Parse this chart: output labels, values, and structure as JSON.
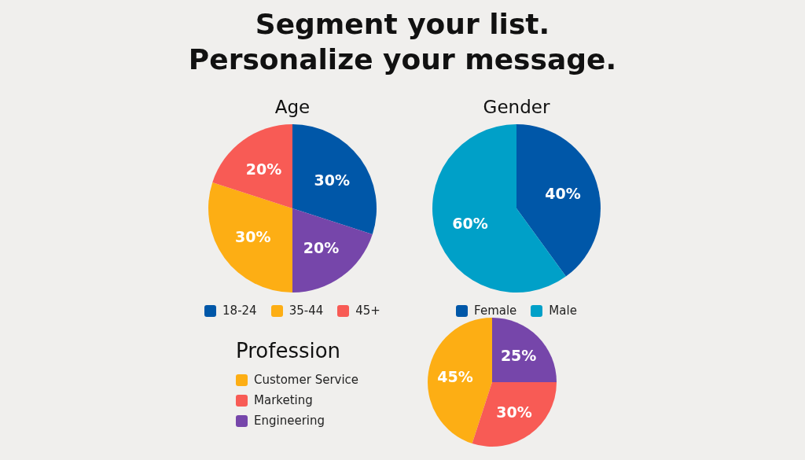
{
  "chart_data": [
    {
      "type": "pie",
      "title": "Age",
      "annotations": [
        "Segment your list.",
        "Personalize your message."
      ],
      "categories": [
        "18-24",
        null,
        "35-44",
        "45+"
      ],
      "values": [
        30,
        20,
        30,
        20
      ],
      "value_labels": [
        "30%",
        "20%",
        "30%",
        "20%"
      ],
      "colors": [
        "#0057a8",
        "#7646aa",
        "#fdae14",
        "#f85b55"
      ],
      "legend": "bottom"
    },
    {
      "type": "pie",
      "title": "Gender",
      "categories": [
        "Female",
        "Male"
      ],
      "values": [
        40,
        60
      ],
      "value_labels": [
        "40%",
        "60%"
      ],
      "colors": [
        "#0057a8",
        "#00a0c8"
      ],
      "legend": "bottom"
    },
    {
      "type": "pie",
      "title": "Profession",
      "categories": [
        "Customer Service",
        "Marketing",
        "Engineering"
      ],
      "values": [
        45,
        30,
        25
      ],
      "value_labels": [
        "45%",
        "30%",
        "25%"
      ],
      "colors": [
        "#fdae14",
        "#f85b55",
        "#7646aa"
      ],
      "legend": "left"
    }
  ]
}
